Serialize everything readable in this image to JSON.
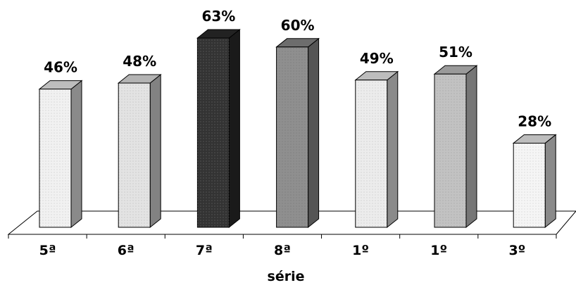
{
  "chart_data": {
    "type": "bar",
    "title": "",
    "xlabel": "série",
    "ylabel": "",
    "categories": [
      "5ª",
      "6ª",
      "7ª",
      "8ª",
      "1º",
      "1º",
      "3º"
    ],
    "values": [
      46,
      48,
      63,
      60,
      49,
      51,
      28
    ],
    "value_labels": [
      "46%",
      "48%",
      "63%",
      "60%",
      "49%",
      "51%",
      "28%"
    ],
    "unit": "%",
    "ylim": [
      0,
      70
    ],
    "grid": false,
    "legend": "none",
    "three_d": true,
    "colors": {
      "front": [
        "#f1f1f1",
        "#e3e3e3",
        "#333333",
        "#8f8f8f",
        "#ececec",
        "#c2c2c2",
        "#f5f5f5"
      ],
      "top": [
        "#bdbdbd",
        "#b3b3b3",
        "#222222",
        "#6d6d6d",
        "#bdbdbd",
        "#9a9a9a",
        "#bdbdbd"
      ],
      "side": [
        "#8a8a8a",
        "#828282",
        "#1a1a1a",
        "#555555",
        "#8a8a8a",
        "#767676",
        "#8a8a8a"
      ]
    }
  }
}
